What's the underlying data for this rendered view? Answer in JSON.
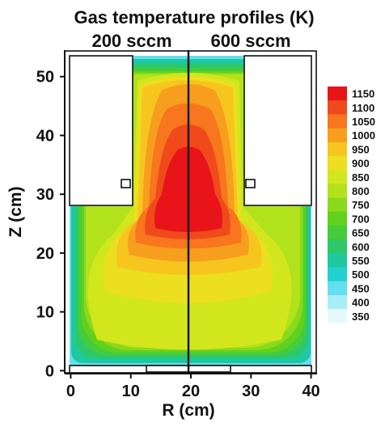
{
  "chart_data": {
    "type": "heatmap",
    "title": "Gas temperature profiles (K)",
    "panels": [
      "200 sccm",
      "600 sccm"
    ],
    "xlabel": "R (cm)",
    "ylabel": "Z (cm)",
    "x_ticks": [
      "0",
      "10",
      "20",
      "30",
      "40"
    ],
    "y_ticks": [
      "0",
      "10",
      "20",
      "30",
      "40",
      "50"
    ],
    "xlim": [
      -1,
      41
    ],
    "ylim": [
      -0.5,
      54.5
    ],
    "colorbar": {
      "unit": "K",
      "levels": [
        "1150",
        "1100",
        "1050",
        "1000",
        "950",
        "900",
        "850",
        "800",
        "750",
        "700",
        "650",
        "600",
        "550",
        "500",
        "450",
        "400",
        "350"
      ],
      "colors": [
        "#e8141a",
        "#f04a1c",
        "#f7761e",
        "#f79e1e",
        "#f6c61e",
        "#ecdf1f",
        "#d2e61e",
        "#b2e21c",
        "#8ad91c",
        "#62d11e",
        "#44cc3c",
        "#2cc86a",
        "#1ec8a0",
        "#22d0ce",
        "#63dff0",
        "#a8eef8",
        "#e6fafe"
      ]
    },
    "temperature_ranges_K": {
      "200 sccm": [
        350,
        1150
      ],
      "600 sccm": [
        350,
        1150
      ]
    },
    "peak_region": {
      "r_cm": [
        14,
        26
      ],
      "z_cm": [
        18,
        38
      ],
      "temperature_K": 1150
    },
    "geometry_cm": {
      "chamber_radius": 40,
      "chamber_height": 54,
      "upper_section_radius": [
        12.5,
        27.5
      ],
      "upper_section_bottom_z": 29,
      "substrate_z": 1.5
    },
    "grid": false,
    "legend_position": "right"
  }
}
